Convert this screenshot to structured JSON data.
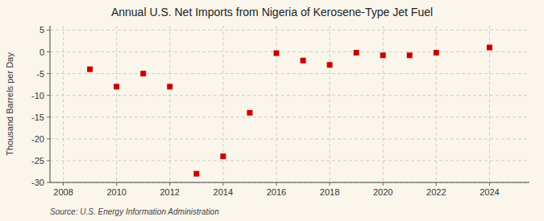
{
  "chart_data": {
    "type": "scatter",
    "title": "Annual U.S. Net Imports from Nigeria of Kerosene-Type Jet Fuel",
    "y_label": "Thousand Barrels per Day",
    "source": "Source: U.S. Energy Information Administration",
    "x": [
      2009,
      2010,
      2011,
      2012,
      2013,
      2014,
      2015,
      2016,
      2017,
      2018,
      2019,
      2020,
      2021,
      2022,
      2024
    ],
    "values": [
      -4.0,
      -8.0,
      -5.0,
      -8.0,
      -28.0,
      -24.0,
      -14.0,
      -0.3,
      -2.0,
      -3.0,
      -0.2,
      -0.8,
      -0.8,
      -0.2,
      1.0
    ],
    "xlim": [
      2007.5,
      2025.5
    ],
    "ylim": [
      -30,
      6
    ],
    "xticks": [
      2008,
      2010,
      2012,
      2014,
      2016,
      2018,
      2020,
      2022,
      2024
    ],
    "yticks": [
      5,
      0,
      -5,
      -10,
      -15,
      -20,
      -25,
      -30
    ],
    "color": "#CC0000",
    "marker": "square",
    "grid": true
  }
}
